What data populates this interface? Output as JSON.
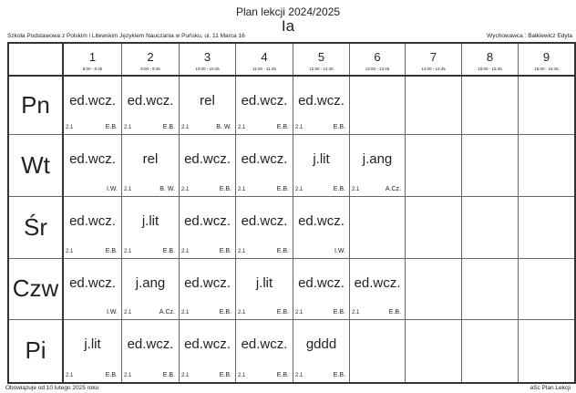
{
  "header": {
    "title": "Plan lekcji 2024/2025",
    "class_name": "Ia",
    "school": "Szkoła Podstawowa z Polskim i Litewskim Językiem Nauczania w Puńsku, ul. 11 Marca 16",
    "homeroom": "Wychowawca : Bałkiewicz Edyta"
  },
  "periods": [
    {
      "n": "1",
      "t": "8:00 - 8:45"
    },
    {
      "n": "2",
      "t": "9:00 - 9:45"
    },
    {
      "n": "3",
      "t": "10:00 - 10:45"
    },
    {
      "n": "4",
      "t": "11:00 - 11:45"
    },
    {
      "n": "5",
      "t": "12:00 - 12:45"
    },
    {
      "n": "6",
      "t": "13:00 - 13:45"
    },
    {
      "n": "7",
      "t": "14:00 - 14:45"
    },
    {
      "n": "8",
      "t": "15:00 - 15:45"
    },
    {
      "n": "9",
      "t": "16:00 - 16:45"
    }
  ],
  "days": [
    {
      "name": "Pn",
      "lessons": [
        {
          "s": "ed.wcz.",
          "r": "2.1",
          "t": "E.B."
        },
        {
          "s": "ed.wcz.",
          "r": "2.1",
          "t": "E.B."
        },
        {
          "s": "rel",
          "r": "2.1",
          "t": "B. W."
        },
        {
          "s": "ed.wcz.",
          "r": "2.1",
          "t": "E.B."
        },
        {
          "s": "ed.wcz.",
          "r": "2.1",
          "t": "E.B."
        },
        null,
        null,
        null,
        null
      ]
    },
    {
      "name": "Wt",
      "lessons": [
        {
          "s": "ed.wcz.",
          "r": "",
          "t": "I.W."
        },
        {
          "s": "rel",
          "r": "2.1",
          "t": "B. W."
        },
        {
          "s": "ed.wcz.",
          "r": "2.1",
          "t": "E.B."
        },
        {
          "s": "ed.wcz.",
          "r": "2.1",
          "t": "E.B."
        },
        {
          "s": "j.lit",
          "r": "2.1",
          "t": "E.B."
        },
        {
          "s": "j.ang",
          "r": "2.1",
          "t": "A.Cz."
        },
        null,
        null,
        null
      ]
    },
    {
      "name": "Śr",
      "lessons": [
        {
          "s": "ed.wcz.",
          "r": "2.1",
          "t": "E.B."
        },
        {
          "s": "j.lit",
          "r": "2.1",
          "t": "E.B."
        },
        {
          "s": "ed.wcz.",
          "r": "2.1",
          "t": "E.B."
        },
        {
          "s": "ed.wcz.",
          "r": "2.1",
          "t": "E.B."
        },
        {
          "s": "ed.wcz.",
          "r": "",
          "t": "I.W."
        },
        null,
        null,
        null,
        null
      ]
    },
    {
      "name": "Czw",
      "lessons": [
        {
          "s": "ed.wcz.",
          "r": "",
          "t": "I.W."
        },
        {
          "s": "j.ang",
          "r": "2.1",
          "t": "A.Cz."
        },
        {
          "s": "ed.wcz.",
          "r": "2.1",
          "t": "E.B."
        },
        {
          "s": "j.lit",
          "r": "2.1",
          "t": "E.B."
        },
        {
          "s": "ed.wcz.",
          "r": "2.1",
          "t": "E.B."
        },
        {
          "s": "ed.wcz.",
          "r": "2.1",
          "t": "E.B."
        },
        null,
        null,
        null
      ]
    },
    {
      "name": "Pi",
      "lessons": [
        {
          "s": "j.lit",
          "r": "2.1",
          "t": "E.B."
        },
        {
          "s": "ed.wcz.",
          "r": "2.1",
          "t": "E.B."
        },
        {
          "s": "ed.wcz.",
          "r": "2.1",
          "t": "E.B."
        },
        {
          "s": "ed.wcz.",
          "r": "2.1",
          "t": "E.B."
        },
        {
          "s": "gddd",
          "r": "2.1",
          "t": "E.B."
        },
        null,
        null,
        null,
        null
      ]
    }
  ],
  "footer": {
    "valid_from": "Obowiązuje od 10 lutego 2025 roku",
    "generator": "aSc Plan Lekcji"
  }
}
